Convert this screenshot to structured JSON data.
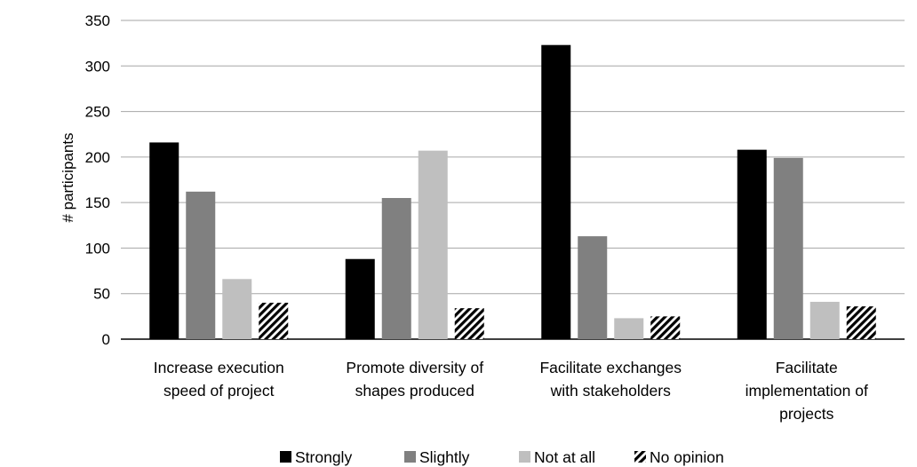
{
  "chart_data": {
    "type": "bar",
    "title": "",
    "xlabel": "",
    "ylabel": "# participants",
    "ylim": [
      0,
      350
    ],
    "yticks": [
      0,
      50,
      100,
      150,
      200,
      250,
      300,
      350
    ],
    "grid": true,
    "legend_position": "bottom",
    "categories": [
      [
        "Increase execution",
        "speed of project"
      ],
      [
        "Promote diversity of",
        "shapes produced"
      ],
      [
        "Facilitate exchanges",
        "with stakeholders"
      ],
      [
        "Facilitate",
        "implementation of",
        "projects"
      ]
    ],
    "series": [
      {
        "name": "Strongly",
        "values": [
          216,
          88,
          323,
          208
        ],
        "color": "#000000",
        "pattern": "solid"
      },
      {
        "name": "Slightly",
        "values": [
          162,
          155,
          113,
          199
        ],
        "color": "#808080",
        "pattern": "solid"
      },
      {
        "name": "Not at all",
        "values": [
          66,
          207,
          23,
          41
        ],
        "color": "#bfbfbf",
        "pattern": "solid"
      },
      {
        "name": "No opinion",
        "values": [
          40,
          34,
          25,
          36
        ],
        "color": "#000000",
        "pattern": "diagonal-stripes"
      }
    ]
  }
}
